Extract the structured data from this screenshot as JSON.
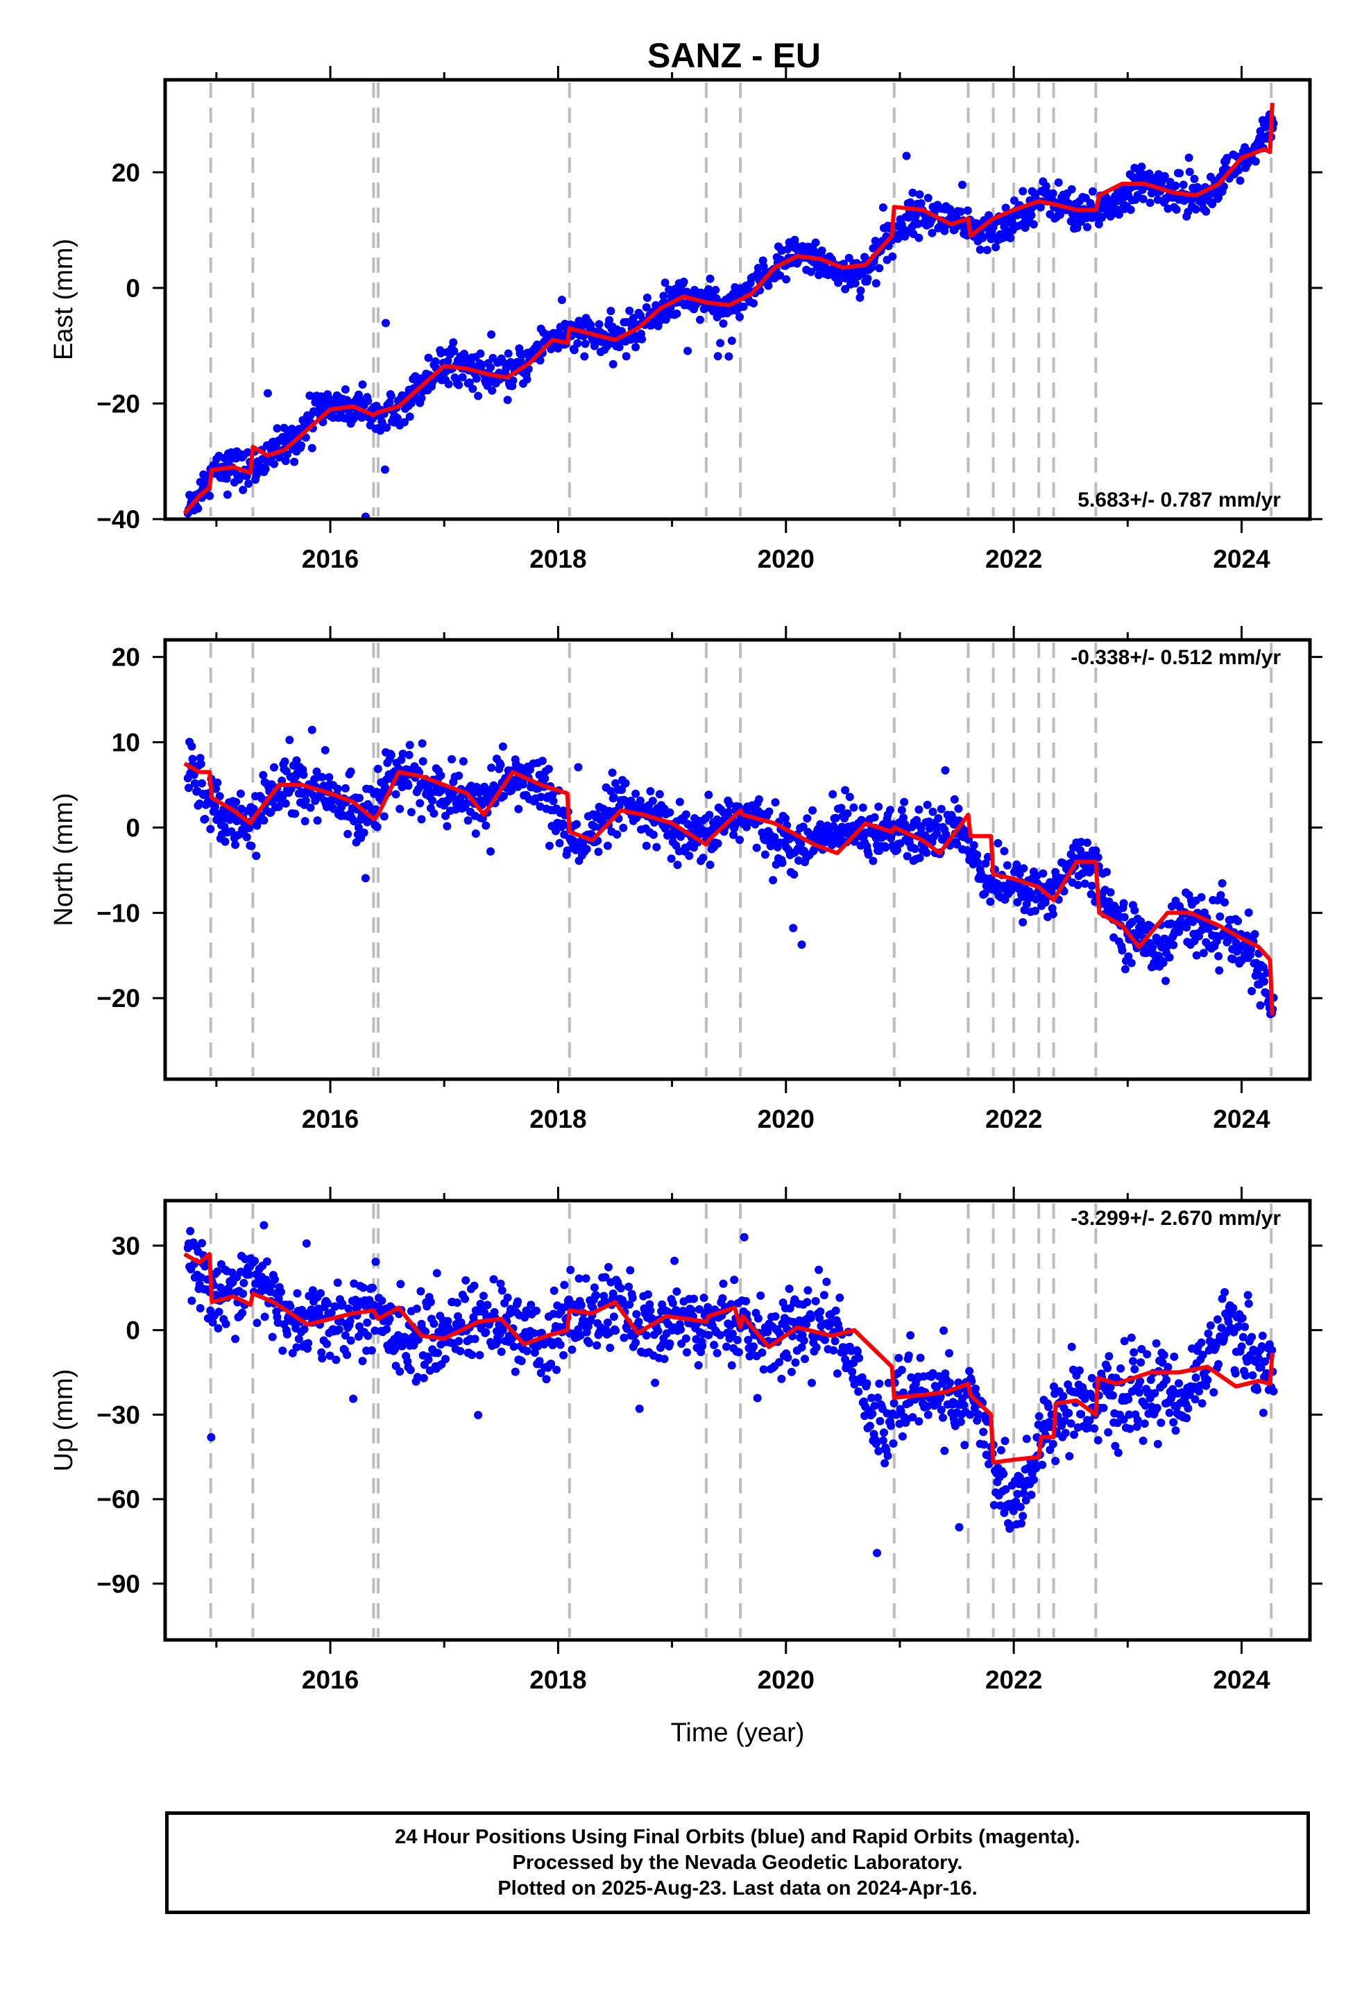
{
  "title": "SANZ - EU",
  "chart_data": [
    {
      "type": "scatter",
      "panel": "East",
      "ylabel": "East (mm)",
      "xlabel": "",
      "xlim": [
        2014.55,
        2024.6
      ],
      "ylim": [
        -40,
        36
      ],
      "xticks": [
        2016,
        2018,
        2020,
        2022,
        2024
      ],
      "yticks": [
        -40,
        -20,
        0,
        20
      ],
      "rate_label": "5.683+/- 0.787 mm/yr",
      "rate_position": "bottom-right",
      "event_lines": [
        2014.95,
        2015.32,
        2016.38,
        2016.42,
        2018.1,
        2019.3,
        2019.6,
        2020.95,
        2021.6,
        2021.82,
        2022.0,
        2022.22,
        2022.35,
        2022.72,
        2024.26
      ],
      "series": [
        {
          "name": "Final Orbits (blue)",
          "x": [
            2014.75,
            2014.95,
            2015.1,
            2015.3,
            2015.5,
            2015.7,
            2015.9,
            2016.1,
            2016.3,
            2016.5,
            2016.7,
            2016.9,
            2017.1,
            2017.3,
            2017.5,
            2017.7,
            2017.9,
            2018.1,
            2018.3,
            2018.5,
            2018.7,
            2018.9,
            2019.1,
            2019.3,
            2019.5,
            2019.7,
            2019.9,
            2020.1,
            2020.3,
            2020.5,
            2020.7,
            2020.9,
            2021.1,
            2021.3,
            2021.5,
            2021.7,
            2021.9,
            2022.1,
            2022.3,
            2022.5,
            2022.7,
            2022.9,
            2023.1,
            2023.3,
            2023.5,
            2023.7,
            2023.9,
            2024.1,
            2024.28
          ],
          "values": [
            -38.5,
            -32,
            -31,
            -31.5,
            -28.5,
            -26,
            -20.5,
            -20.5,
            -21,
            -21,
            -19,
            -14.5,
            -13,
            -14.5,
            -16,
            -13.5,
            -9,
            -8,
            -8.5,
            -9,
            -7,
            -3.5,
            -1.5,
            -2.5,
            -3.5,
            -1,
            3.5,
            5.5,
            5,
            2.5,
            3,
            8,
            13,
            12.5,
            11.5,
            9,
            10.5,
            14,
            15.5,
            14,
            13,
            14.5,
            18,
            17.5,
            16,
            16.5,
            20,
            23,
            29
          ]
        },
        {
          "name": "model",
          "x": [
            2014.72,
            2014.85,
            2014.94,
            2014.96,
            2015.15,
            2015.3,
            2015.32,
            2015.45,
            2015.6,
            2015.8,
            2016.0,
            2016.2,
            2016.38,
            2016.42,
            2016.6,
            2016.8,
            2017.0,
            2017.2,
            2017.4,
            2017.55,
            2017.75,
            2017.95,
            2018.08,
            2018.1,
            2018.3,
            2018.5,
            2018.7,
            2018.9,
            2019.1,
            2019.3,
            2019.5,
            2019.7,
            2019.9,
            2020.1,
            2020.3,
            2020.5,
            2020.7,
            2020.93,
            2020.95,
            2021.2,
            2021.45,
            2021.6,
            2021.62,
            2021.82,
            2022.0,
            2022.22,
            2022.35,
            2022.55,
            2022.72,
            2022.75,
            2022.95,
            2023.15,
            2023.4,
            2023.6,
            2023.8,
            2024.0,
            2024.2,
            2024.25,
            2024.27
          ],
          "values": [
            -39,
            -36,
            -34.5,
            -31.5,
            -31,
            -32,
            -27.5,
            -29,
            -28,
            -24.5,
            -21,
            -20.5,
            -22,
            -21.5,
            -20.5,
            -17,
            -13.5,
            -14,
            -15,
            -15.5,
            -13,
            -9,
            -9.5,
            -7,
            -8,
            -9,
            -7,
            -3.5,
            -1.5,
            -2.5,
            -3,
            -1,
            3.5,
            5.5,
            5,
            3.5,
            4,
            9,
            14,
            13.5,
            11,
            12,
            9,
            12,
            13.5,
            15,
            14.5,
            13.5,
            13.5,
            16,
            18,
            18,
            16.5,
            16,
            18,
            22.5,
            24,
            23.5,
            32
          ]
        }
      ]
    },
    {
      "type": "scatter",
      "panel": "North",
      "ylabel": "North (mm)",
      "xlabel": "",
      "xlim": [
        2014.55,
        2024.6
      ],
      "ylim": [
        -29.5,
        22
      ],
      "xticks": [
        2016,
        2018,
        2020,
        2022,
        2024
      ],
      "yticks": [
        -20,
        -10,
        0,
        10,
        20
      ],
      "rate_label": "-0.338+/- 0.512 mm/yr",
      "rate_position": "top-right",
      "event_lines": [
        2014.95,
        2015.32,
        2016.38,
        2016.42,
        2018.1,
        2019.3,
        2019.6,
        2020.95,
        2021.6,
        2021.82,
        2022.0,
        2022.22,
        2022.35,
        2022.72,
        2024.26
      ],
      "series": [
        {
          "name": "Final Orbits (blue)",
          "x": [
            2014.75,
            2014.95,
            2015.1,
            2015.3,
            2015.5,
            2015.7,
            2015.9,
            2016.1,
            2016.3,
            2016.5,
            2016.7,
            2016.9,
            2017.1,
            2017.3,
            2017.5,
            2017.7,
            2017.9,
            2018.1,
            2018.3,
            2018.5,
            2018.7,
            2018.9,
            2019.1,
            2019.3,
            2019.5,
            2019.7,
            2019.9,
            2020.1,
            2020.3,
            2020.5,
            2020.7,
            2020.9,
            2021.1,
            2021.3,
            2021.5,
            2021.7,
            2021.9,
            2022.1,
            2022.3,
            2022.5,
            2022.7,
            2022.9,
            2023.1,
            2023.3,
            2023.5,
            2023.7,
            2023.9,
            2024.1,
            2024.28
          ],
          "values": [
            8,
            3,
            1.5,
            0.5,
            4,
            5.5,
            4,
            3,
            1.5,
            6,
            6,
            4.5,
            3,
            3,
            5.5,
            5.5,
            4.5,
            -1.5,
            -1,
            2.5,
            1.5,
            0.5,
            -1.5,
            -1.5,
            1.5,
            1,
            -1,
            -2.5,
            -1.5,
            1,
            0,
            -0.5,
            -1.5,
            -1,
            1,
            -5,
            -6.5,
            -7.5,
            -8,
            -4,
            -4,
            -11,
            -13,
            -14,
            -10,
            -12,
            -13,
            -15,
            -22
          ]
        },
        {
          "name": "model",
          "x": [
            2014.72,
            2014.85,
            2014.94,
            2014.96,
            2015.15,
            2015.3,
            2015.32,
            2015.55,
            2015.75,
            2016.0,
            2016.2,
            2016.38,
            2016.42,
            2016.6,
            2016.8,
            2017.0,
            2017.2,
            2017.35,
            2017.6,
            2017.85,
            2018.08,
            2018.1,
            2018.3,
            2018.55,
            2018.75,
            2019.0,
            2019.3,
            2019.32,
            2019.6,
            2019.62,
            2019.9,
            2020.25,
            2020.45,
            2020.7,
            2020.93,
            2020.95,
            2021.2,
            2021.35,
            2021.6,
            2021.62,
            2021.8,
            2021.82,
            2022.0,
            2022.22,
            2022.35,
            2022.55,
            2022.72,
            2022.75,
            2022.95,
            2023.1,
            2023.35,
            2023.55,
            2023.8,
            2024.0,
            2024.15,
            2024.25,
            2024.27
          ],
          "values": [
            7.5,
            6.5,
            6.5,
            3.5,
            2,
            0.5,
            1,
            5,
            5,
            4,
            3,
            1,
            1.5,
            6.5,
            6,
            5,
            4,
            1.5,
            6.5,
            5,
            4,
            -0.5,
            -1.5,
            2,
            1.5,
            0.5,
            -2,
            -1.5,
            2,
            1.5,
            0.5,
            -2,
            -3,
            0.5,
            -0.5,
            0,
            -1.5,
            -3,
            1.5,
            -1,
            -1,
            -5.5,
            -6,
            -7,
            -8.5,
            -4,
            -4,
            -10,
            -11.5,
            -14,
            -10,
            -10,
            -11.5,
            -13,
            -14,
            -15.5,
            -22
          ]
        }
      ]
    },
    {
      "type": "scatter",
      "panel": "Up",
      "ylabel": "Up (mm)",
      "xlabel": "Time (year)",
      "xlim": [
        2014.55,
        2024.6
      ],
      "ylim": [
        -110,
        46
      ],
      "xticks": [
        2016,
        2018,
        2020,
        2022,
        2024
      ],
      "yticks": [
        -90,
        -60,
        -30,
        0,
        30
      ],
      "rate_label": "-3.299+/- 2.670 mm/yr",
      "rate_position": "top-right",
      "event_lines": [
        2014.95,
        2015.32,
        2016.38,
        2016.42,
        2018.1,
        2019.3,
        2019.6,
        2020.95,
        2021.6,
        2021.82,
        2022.0,
        2022.22,
        2022.35,
        2022.72,
        2024.26
      ],
      "series": [
        {
          "name": "Final Orbits (blue)",
          "x": [
            2014.75,
            2014.95,
            2015.1,
            2015.3,
            2015.5,
            2015.7,
            2015.9,
            2016.1,
            2016.3,
            2016.5,
            2016.7,
            2016.9,
            2017.1,
            2017.3,
            2017.5,
            2017.7,
            2017.9,
            2018.1,
            2018.3,
            2018.5,
            2018.7,
            2018.9,
            2019.1,
            2019.3,
            2019.5,
            2019.7,
            2019.9,
            2020.1,
            2020.3,
            2020.5,
            2020.7,
            2020.9,
            2021.1,
            2021.3,
            2021.5,
            2021.7,
            2021.9,
            2022.1,
            2022.3,
            2022.5,
            2022.7,
            2022.9,
            2023.1,
            2023.3,
            2023.5,
            2023.7,
            2023.9,
            2024.1,
            2024.28
          ],
          "values": [
            28,
            12,
            15,
            20,
            10,
            2,
            4,
            5,
            6,
            2,
            -2,
            -4,
            2,
            3,
            2,
            -3,
            -4,
            5,
            6,
            8,
            2,
            0,
            3,
            5,
            5,
            -2,
            -3,
            0,
            2,
            -1,
            -25,
            -35,
            -20,
            -22,
            -25,
            -30,
            -60,
            -55,
            -35,
            -25,
            -25,
            -25,
            -25,
            -20,
            -25,
            -10,
            5,
            -10,
            -15
          ]
        },
        {
          "name": "model",
          "x": [
            2014.72,
            2014.85,
            2014.94,
            2014.96,
            2015.15,
            2015.3,
            2015.32,
            2015.5,
            2015.8,
            2016.0,
            2016.2,
            2016.38,
            2016.42,
            2016.6,
            2016.8,
            2017.0,
            2017.3,
            2017.5,
            2017.7,
            2017.9,
            2018.08,
            2018.1,
            2018.3,
            2018.5,
            2018.7,
            2018.95,
            2019.3,
            2019.32,
            2019.55,
            2019.6,
            2019.62,
            2019.85,
            2020.1,
            2020.4,
            2020.6,
            2020.93,
            2020.95,
            2021.2,
            2021.4,
            2021.6,
            2021.62,
            2021.8,
            2021.82,
            2022.0,
            2022.22,
            2022.24,
            2022.35,
            2022.37,
            2022.55,
            2022.72,
            2022.74,
            2022.9,
            2023.2,
            2023.45,
            2023.7,
            2023.95,
            2024.15,
            2024.25,
            2024.27
          ],
          "values": [
            27,
            24,
            27,
            10,
            12,
            9,
            13,
            10,
            2,
            4,
            6,
            7,
            4,
            8,
            -2,
            -3,
            3,
            4,
            -5,
            -2,
            0,
            7,
            6,
            10,
            -1,
            5,
            3,
            5,
            8,
            1,
            5,
            -6,
            1,
            -2,
            0,
            -13,
            -24,
            -23,
            -22,
            -19,
            -23,
            -30,
            -47,
            -46,
            -45,
            -38,
            -38,
            -26,
            -25,
            -30,
            -17,
            -19,
            -15,
            -15,
            -13,
            -20,
            -18,
            -19,
            -8
          ]
        }
      ]
    }
  ],
  "footer": {
    "line1": "24 Hour Positions Using Final Orbits (blue) and Rapid Orbits (magenta).",
    "line2": "Processed by the Nevada Geodetic Laboratory.",
    "line3": "Plotted on 2025-Aug-23. Last data on 2024-Apr-16."
  },
  "colors": {
    "points": "#0000ff",
    "model": "#ff0000",
    "event_lines": "#bdbdbd",
    "frame": "#000000"
  }
}
